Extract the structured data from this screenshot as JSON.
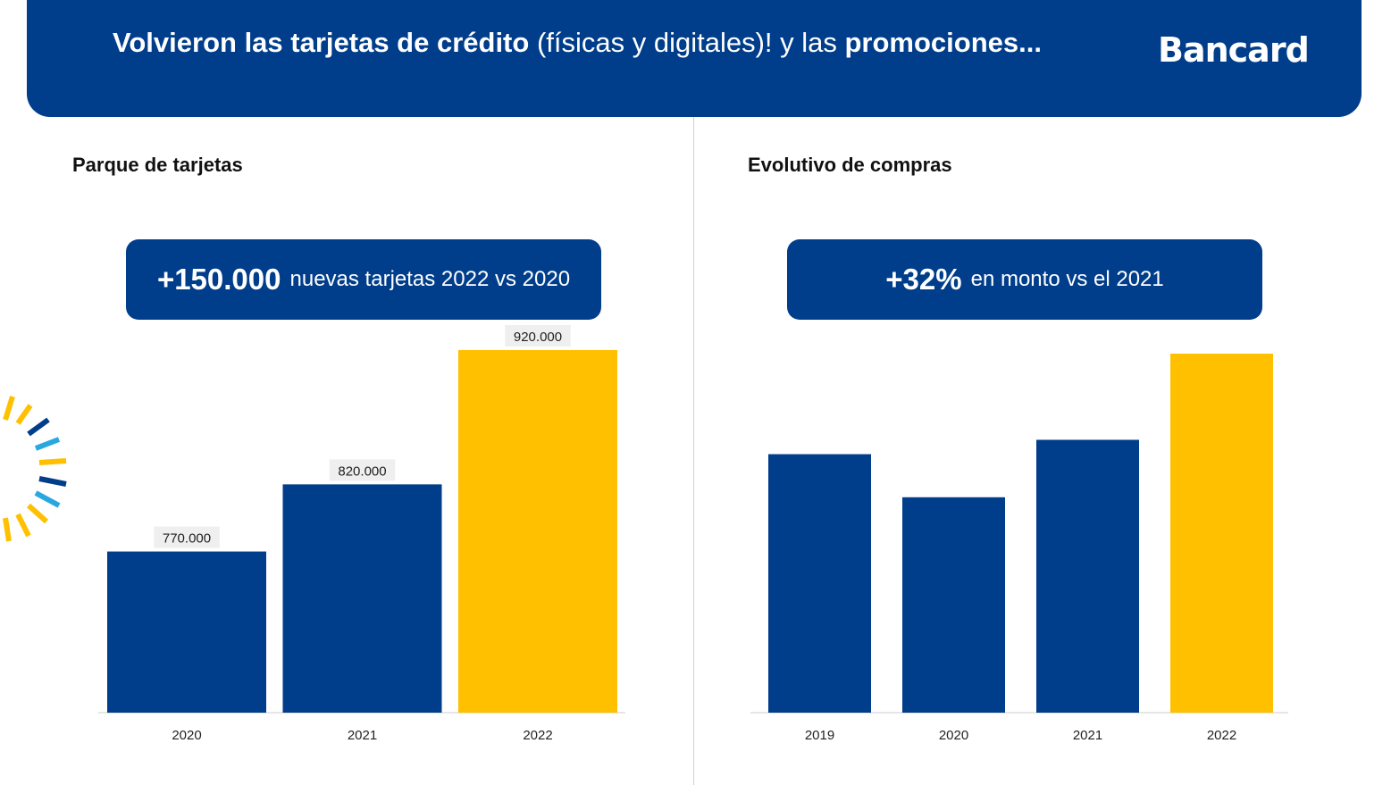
{
  "header": {
    "title_bold1": "Volvieron las tarjetas de crédito",
    "title_light1": " (físicas y digitales)! y las ",
    "title_bold2": "promociones...",
    "logo": "Bancard"
  },
  "colors": {
    "primary": "#003d8a",
    "accent": "#ffc000"
  },
  "left": {
    "title": "Parque de tarjetas",
    "kpi_big": "+150.000",
    "kpi_small": "nuevas tarjetas 2022 vs 2020"
  },
  "right": {
    "title": "Evolutivo de compras",
    "kpi_big": "+32%",
    "kpi_small": "en monto vs el 2021"
  },
  "chart_data": [
    {
      "type": "bar",
      "categories": [
        "2020",
        "2021",
        "2022"
      ],
      "values": [
        770000,
        820000,
        920000
      ],
      "data_labels": [
        "770.000",
        "820.000",
        "920.000"
      ],
      "highlight": [
        false,
        false,
        true
      ],
      "ylim": [
        650000,
        920000
      ]
    },
    {
      "type": "bar",
      "categories": [
        "2019",
        "2020",
        "2021",
        "2022"
      ],
      "values": [
        72,
        60,
        76,
        100
      ],
      "highlight": [
        false,
        false,
        false,
        true
      ],
      "ylim": [
        0,
        100
      ]
    }
  ]
}
